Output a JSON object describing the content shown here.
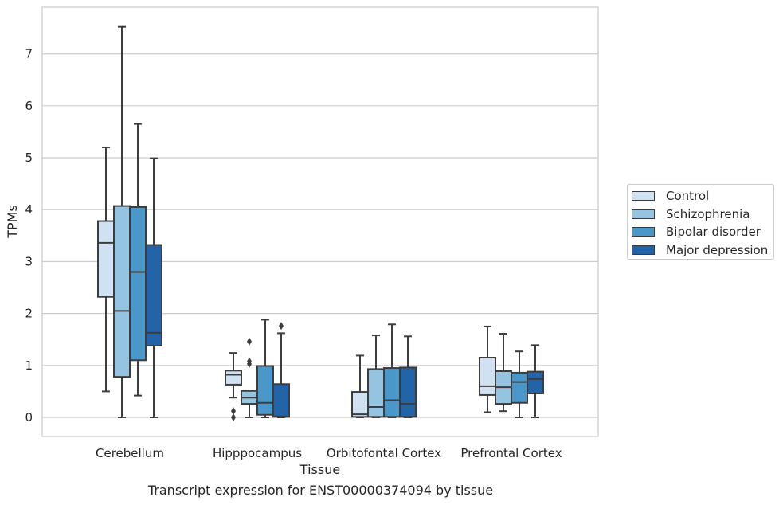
{
  "caption": "Transcript expression for ENST00000374094 by tissue",
  "chart_data": {
    "type": "box",
    "xlabel": "Tissue",
    "ylabel": "TPMs",
    "ylim": [
      -0.36,
      7.9
    ],
    "yticks": [
      0,
      1,
      2,
      3,
      4,
      5,
      6,
      7
    ],
    "grid": "horizontal",
    "legend_position": "right",
    "categories": [
      "Cerebellum",
      "Hipppocampus",
      "Orbitofontal Cortex",
      "Prefrontal Cortex"
    ],
    "colors": [
      "#d0e1f2",
      "#94c4df",
      "#4a98c9",
      "#2363a8"
    ],
    "series": [
      {
        "name": "Control",
        "boxes": [
          {
            "whisker_low": 0.5,
            "q1": 2.32,
            "median": 3.36,
            "q3": 3.78,
            "whisker_high": 5.2,
            "outliers": []
          },
          {
            "whisker_low": 0.38,
            "q1": 0.63,
            "median": 0.82,
            "q3": 0.9,
            "whisker_high": 1.24,
            "outliers": [
              0.0,
              0.12
            ]
          },
          {
            "whisker_low": 0.0,
            "q1": 0.01,
            "median": 0.06,
            "q3": 0.49,
            "whisker_high": 1.19,
            "outliers": []
          },
          {
            "whisker_low": 0.1,
            "q1": 0.43,
            "median": 0.6,
            "q3": 1.15,
            "whisker_high": 1.75,
            "outliers": []
          }
        ]
      },
      {
        "name": "Schizophrenia",
        "boxes": [
          {
            "whisker_low": 0.0,
            "q1": 0.78,
            "median": 2.05,
            "q3": 4.07,
            "whisker_high": 7.52,
            "outliers": []
          },
          {
            "whisker_low": 0.0,
            "q1": 0.26,
            "median": 0.38,
            "q3": 0.51,
            "whisker_high": 0.52,
            "outliers": [
              1.03,
              1.08,
              1.46
            ]
          },
          {
            "whisker_low": 0.0,
            "q1": 0.01,
            "median": 0.2,
            "q3": 0.93,
            "whisker_high": 1.58,
            "outliers": []
          },
          {
            "whisker_low": 0.12,
            "q1": 0.26,
            "median": 0.58,
            "q3": 0.89,
            "whisker_high": 1.61,
            "outliers": []
          }
        ]
      },
      {
        "name": "Bipolar disorder",
        "boxes": [
          {
            "whisker_low": 0.42,
            "q1": 1.1,
            "median": 2.8,
            "q3": 4.05,
            "whisker_high": 5.65,
            "outliers": []
          },
          {
            "whisker_low": 0.0,
            "q1": 0.05,
            "median": 0.28,
            "q3": 0.99,
            "whisker_high": 1.88,
            "outliers": []
          },
          {
            "whisker_low": 0.0,
            "q1": 0.01,
            "median": 0.33,
            "q3": 0.95,
            "whisker_high": 1.79,
            "outliers": []
          },
          {
            "whisker_low": 0.0,
            "q1": 0.28,
            "median": 0.68,
            "q3": 0.86,
            "whisker_high": 1.27,
            "outliers": []
          }
        ]
      },
      {
        "name": "Major depression",
        "boxes": [
          {
            "whisker_low": 0.0,
            "q1": 1.38,
            "median": 1.63,
            "q3": 3.32,
            "whisker_high": 4.99,
            "outliers": []
          },
          {
            "whisker_low": 0.0,
            "q1": 0.01,
            "median": 0.02,
            "q3": 0.64,
            "whisker_high": 1.62,
            "outliers": [
              1.76
            ]
          },
          {
            "whisker_low": 0.0,
            "q1": 0.01,
            "median": 0.26,
            "q3": 0.96,
            "whisker_high": 1.56,
            "outliers": []
          },
          {
            "whisker_low": 0.0,
            "q1": 0.46,
            "median": 0.74,
            "q3": 0.88,
            "whisker_high": 1.39,
            "outliers": []
          }
        ]
      }
    ]
  }
}
